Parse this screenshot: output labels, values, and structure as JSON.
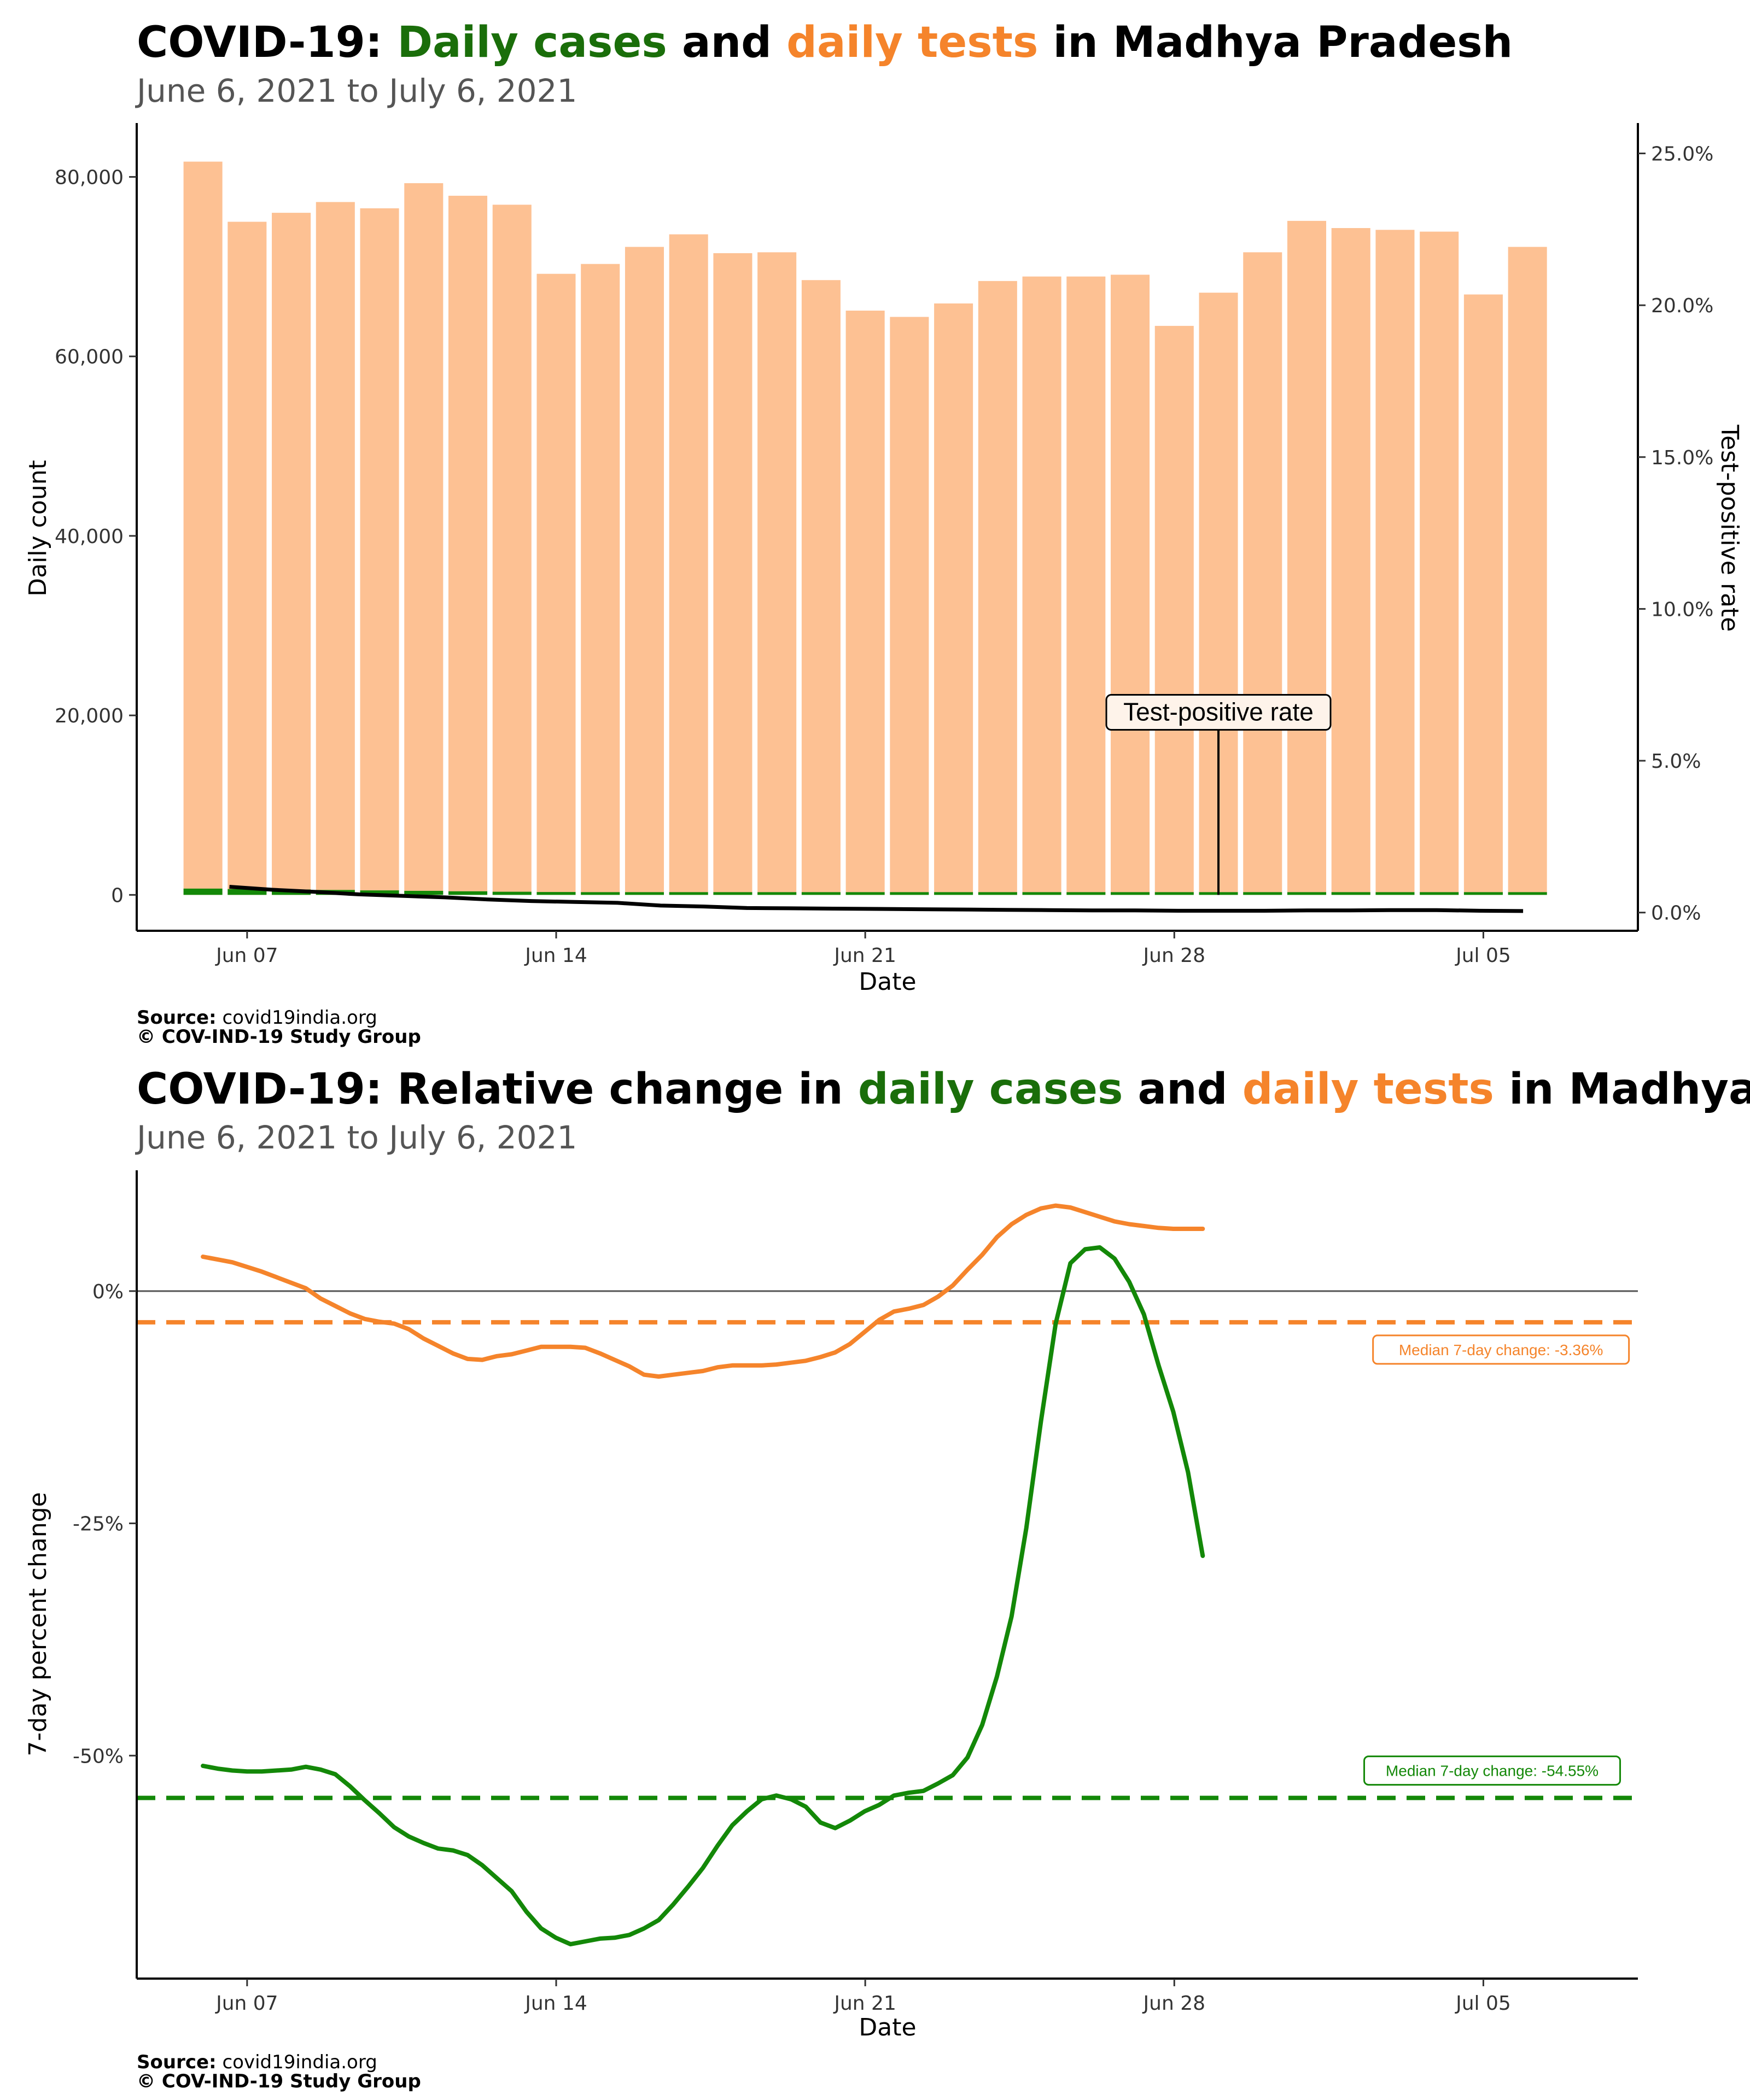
{
  "chart_data": [
    {
      "type": "bar",
      "title": {
        "prefix": "COVID-19: ",
        "cases_word": "Daily cases",
        "middle": " and ",
        "tests_word": "daily tests",
        "suffix": " in Madhya Pradesh"
      },
      "subtitle": "June  6, 2021 to July  6, 2021",
      "xlabel": "Date",
      "ylabel": "Daily count",
      "y2label": "Test-positive rate",
      "x_ticks": [
        {
          "day": 1,
          "label": "Jun 07"
        },
        {
          "day": 8,
          "label": "Jun 14"
        },
        {
          "day": 15,
          "label": "Jun 21"
        },
        {
          "day": 22,
          "label": "Jun 28"
        },
        {
          "day": 29,
          "label": "Jul 05"
        }
      ],
      "y_ticks": [
        {
          "value": 0,
          "label": "0"
        },
        {
          "value": 20000,
          "label": "20,000"
        },
        {
          "value": 40000,
          "label": "40,000"
        },
        {
          "value": 60000,
          "label": "60,000"
        },
        {
          "value": 80000,
          "label": "80,000"
        }
      ],
      "y2_ticks": [
        {
          "value": 0,
          "label": "0.0%"
        },
        {
          "value": 5,
          "label": "5.0%"
        },
        {
          "value": 10,
          "label": "10.0%"
        },
        {
          "value": 15,
          "label": "15.0%"
        },
        {
          "value": 20,
          "label": "20.0%"
        },
        {
          "value": 25,
          "label": "25.0%"
        }
      ],
      "ylim": [
        -4000,
        86000
      ],
      "y2lim": [
        -0.6,
        26.0
      ],
      "xlim": [
        -1.5,
        32.5
      ],
      "test_bars_daily": [
        81700,
        75000,
        76000,
        77200,
        76500,
        79300,
        77900,
        76900,
        69200,
        70300,
        72200,
        73600,
        71500,
        71600,
        68500,
        65100,
        64400,
        65900,
        68400,
        68900,
        68900,
        69100,
        63400,
        67100,
        71600,
        75100,
        74300,
        74100,
        73900,
        66900,
        72200
      ],
      "case_bars_daily": [
        700,
        650,
        600,
        550,
        500,
        450,
        400,
        350,
        320,
        300,
        280,
        250,
        230,
        210,
        200,
        190,
        180,
        170,
        160,
        150,
        140,
        130,
        120,
        110,
        100,
        100,
        95,
        95,
        90,
        90,
        85
      ],
      "tpr_line_pct": [
        0.85,
        0.75,
        0.68,
        0.6,
        0.55,
        0.5,
        0.43,
        0.38,
        0.35,
        0.32,
        0.23,
        0.2,
        0.15,
        0.14,
        0.13,
        0.12,
        0.11,
        0.1,
        0.09,
        0.08,
        0.07,
        0.07,
        0.06,
        0.06,
        0.06,
        0.07,
        0.07,
        0.08,
        0.08,
        0.06,
        0.05
      ],
      "tpr_line_start_day": 0.6,
      "tpr_line_end_day": 29.9,
      "colors": {
        "tests": "#FDC193",
        "cases": "#138808",
        "tpr": "#000000",
        "tests_word": "#F5842B",
        "cases_word": "#1A6E0A"
      },
      "annotation": {
        "label": "Test-positive rate",
        "day": 23.0,
        "value_pct": 6.0
      },
      "source_label": "Source:",
      "source": "covid19india.org",
      "credit": "© COV-IND-19 Study Group"
    },
    {
      "type": "line",
      "title": {
        "prefix": "COVID-19: Relative change in ",
        "cases_word": "daily cases",
        "middle": " and ",
        "tests_word": "daily tests",
        "suffix": " in Madhya Pradesh"
      },
      "subtitle": "June  6, 2021 to July  6, 2021",
      "xlabel": "Date",
      "ylabel": "7-day percent change",
      "x_ticks": [
        {
          "day": 1,
          "label": "Jun 07"
        },
        {
          "day": 8,
          "label": "Jun 14"
        },
        {
          "day": 15,
          "label": "Jun 21"
        },
        {
          "day": 22,
          "label": "Jun 28"
        },
        {
          "day": 29,
          "label": "Jul 05"
        }
      ],
      "y_ticks": [
        {
          "value": 0,
          "label": "0%"
        },
        {
          "value": -25,
          "label": "-25%"
        },
        {
          "value": -50,
          "label": "-50%"
        }
      ],
      "ylim": [
        -74,
        13
      ],
      "xlim": [
        -1.5,
        32.5
      ],
      "series": [
        {
          "key": "tests",
          "color": "#F5842B",
          "step": 0.333,
          "values": [
            3.7,
            3.4,
            3.1,
            2.6,
            2.1,
            1.5,
            0.9,
            0.3,
            -0.8,
            -1.6,
            -2.4,
            -3.0,
            -3.3,
            -3.5,
            -4.1,
            -5.1,
            -5.9,
            -6.7,
            -7.3,
            -7.4,
            -7.0,
            -6.8,
            -6.4,
            -6.0,
            -6.0,
            -6.0,
            -6.1,
            -6.7,
            -7.4,
            -8.1,
            -9.0,
            -9.2,
            -9.0,
            -8.8,
            -8.6,
            -8.2,
            -8.0,
            -8.0,
            -8.0,
            -7.9,
            -7.7,
            -7.5,
            -7.1,
            -6.6,
            -5.7,
            -4.4,
            -3.1,
            -2.2,
            -1.9,
            -1.5,
            -0.6,
            0.6,
            2.3,
            3.9,
            5.8,
            7.2,
            8.2,
            8.9,
            9.2,
            9.0,
            8.5,
            8.0,
            7.5,
            7.2,
            7.0,
            6.8,
            6.7,
            6.7,
            6.7
          ],
          "median": -3.36,
          "median_label": "Median 7-day change: -3.36%",
          "median_label_day": 26.6
        },
        {
          "key": "cases",
          "color": "#138808",
          "step": 0.333,
          "values": [
            -51.1,
            -51.4,
            -51.6,
            -51.7,
            -51.7,
            -51.6,
            -51.5,
            -51.2,
            -51.5,
            -52.0,
            -53.3,
            -54.8,
            -56.2,
            -57.7,
            -58.7,
            -59.4,
            -60.0,
            -60.2,
            -60.7,
            -61.8,
            -63.2,
            -64.6,
            -66.8,
            -68.6,
            -69.6,
            -70.3,
            -70.0,
            -69.7,
            -69.6,
            -69.3,
            -68.6,
            -67.7,
            -66.0,
            -64.1,
            -62.1,
            -59.7,
            -57.5,
            -56.0,
            -54.7,
            -54.3,
            -54.7,
            -55.5,
            -57.2,
            -57.8,
            -57.0,
            -56.0,
            -55.3,
            -54.3,
            -54.0,
            -53.8,
            -53.0,
            -52.1,
            -50.2,
            -46.7,
            -41.5,
            -35.0,
            -25.5,
            -14.0,
            -3.5,
            3.0,
            4.5,
            4.7,
            3.5,
            1.0,
            -2.5,
            -8.0,
            -13.0,
            -19.5,
            -28.5
          ],
          "median": -54.55,
          "median_label": "Median 7-day change: -54.55%",
          "median_label_day": 26.4
        }
      ],
      "colors": {
        "zero_line": "#555555",
        "tests_word": "#F5842B",
        "cases_word": "#1A6E0A"
      },
      "source_label": "Source:",
      "source": "covid19india.org",
      "credit": "© COV-IND-19 Study Group"
    }
  ]
}
